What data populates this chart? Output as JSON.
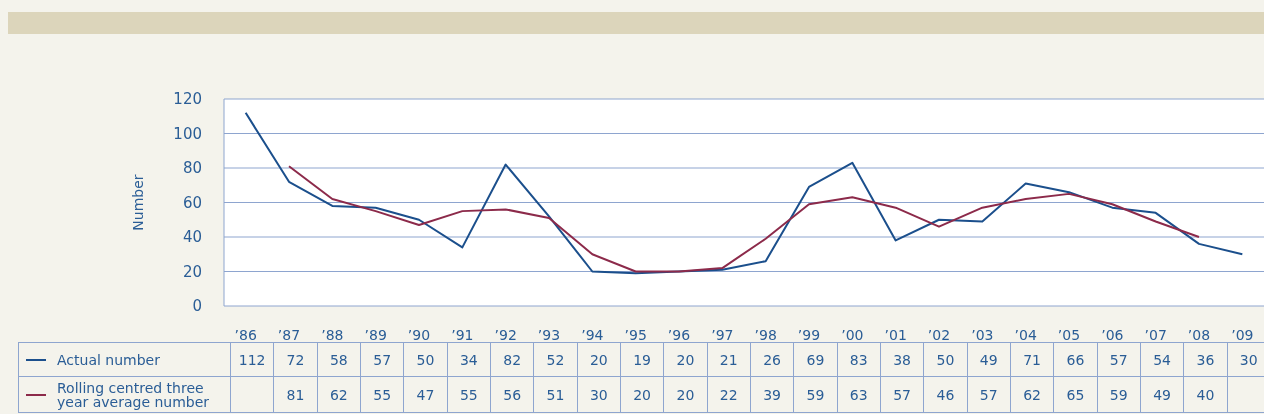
{
  "chart_data": {
    "type": "line",
    "ylabel": "Number",
    "categories": [
      "’86",
      "’87",
      "’88",
      "’89",
      "’90",
      "’91",
      "’92",
      "’93",
      "’94",
      "’95",
      "’96",
      "’97",
      "’98",
      "’99",
      "’00",
      "’01",
      "’02",
      "’03",
      "’04",
      "’05",
      "’06",
      "’07",
      "’08",
      "’09"
    ],
    "series": [
      {
        "name": "Actual number",
        "color": "#1b4f8c",
        "values": [
          112,
          72,
          58,
          57,
          50,
          34,
          82,
          52,
          20,
          19,
          20,
          21,
          26,
          69,
          83,
          38,
          50,
          49,
          71,
          66,
          57,
          54,
          36,
          30
        ]
      },
      {
        "name": "Rolling centred three year average number",
        "color": "#8c2a4a",
        "values": [
          null,
          81,
          62,
          55,
          47,
          55,
          56,
          51,
          30,
          20,
          20,
          22,
          39,
          59,
          63,
          57,
          46,
          57,
          62,
          65,
          59,
          49,
          40,
          null
        ]
      }
    ],
    "ylim": [
      0,
      120
    ],
    "yticks": [
      0,
      20,
      40,
      60,
      80,
      100,
      120
    ],
    "grid": "y",
    "legend": "bottom",
    "data_labels": true,
    "marker": "none",
    "line_style": "solid"
  }
}
